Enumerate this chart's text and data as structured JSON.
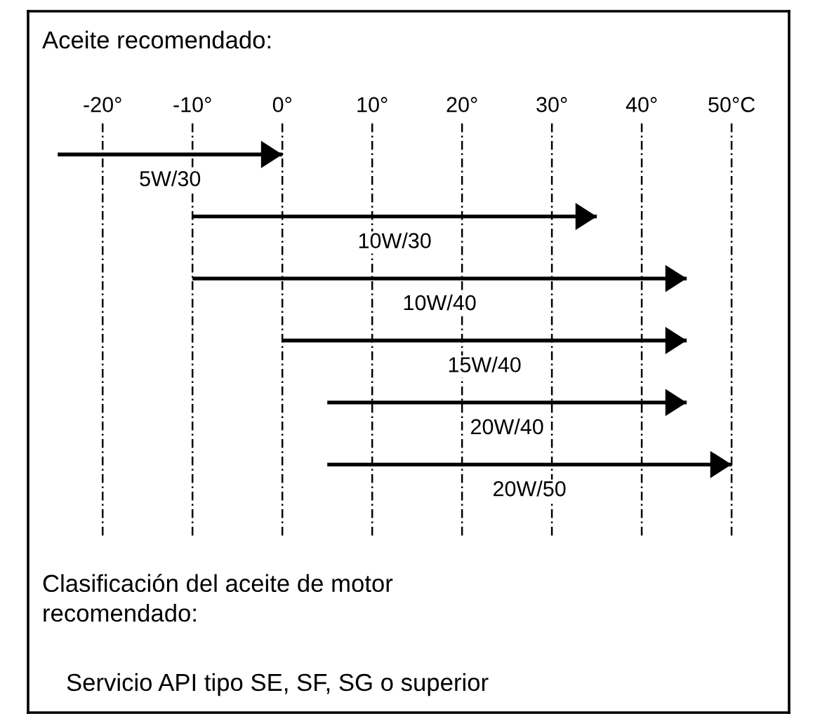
{
  "chart_data": {
    "type": "bar",
    "orientation": "horizontal",
    "title": "Aceite recomendado:",
    "categories": [
      "5W/30",
      "10W/30",
      "10W/40",
      "15W/40",
      "20W/40",
      "20W/50"
    ],
    "base": [
      -25,
      -10,
      -10,
      0,
      5,
      5
    ],
    "values": [
      25,
      45,
      55,
      45,
      40,
      45
    ],
    "color": "#000000",
    "xlim": [
      -28.3,
      56.4
    ],
    "xticks": [
      {
        "value": -20,
        "label": "-20°"
      },
      {
        "value": -10,
        "label": "-10°"
      },
      {
        "value": 0,
        "label": "0°"
      },
      {
        "value": 10,
        "label": "10°"
      },
      {
        "value": 20,
        "label": "20°"
      },
      {
        "value": 30,
        "label": "30°"
      },
      {
        "value": 40,
        "label": "40°"
      },
      {
        "value": 50,
        "label": "50°C"
      }
    ],
    "grid": "x",
    "annotations": [
      "Clasificación del aceite de motor\nrecomendado:",
      "Servicio API tipo SE, SF, SG o superior"
    ]
  }
}
